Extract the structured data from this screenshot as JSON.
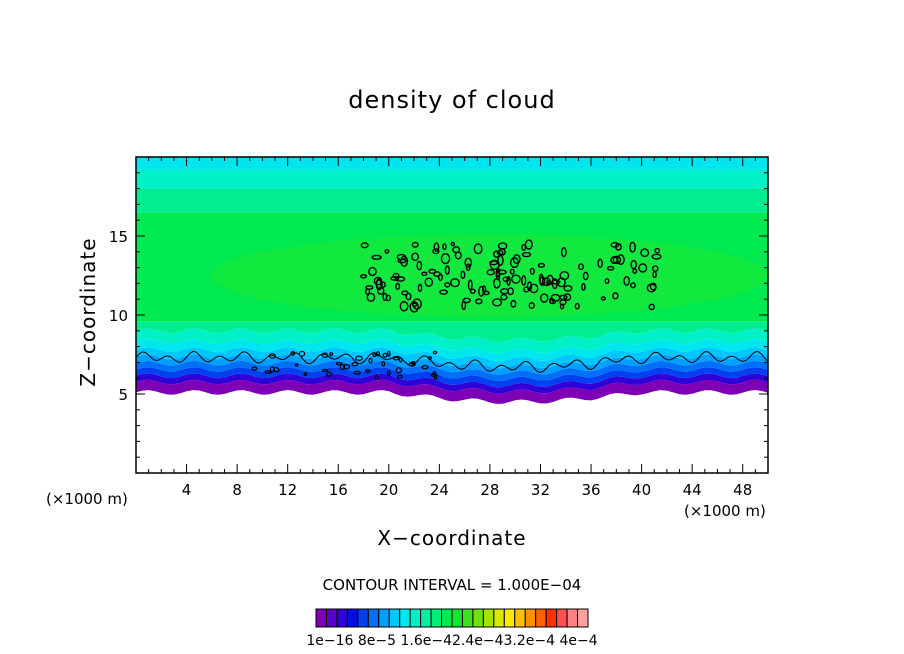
{
  "chart_data": {
    "type": "heatmap",
    "title": "density of cloud",
    "xlabel": "X−coordinate",
    "ylabel": "Z−coordinate",
    "x_unit_left": "(×1000 m)",
    "x_unit_right": "(×1000 m)",
    "xlim": [
      0,
      50
    ],
    "ylim": [
      0,
      20
    ],
    "x_ticks": [
      4,
      8,
      12,
      16,
      20,
      24,
      28,
      32,
      36,
      40,
      44,
      48
    ],
    "y_ticks": [
      5,
      10,
      15
    ],
    "contour_interval_label": "CONTOUR INTERVAL = 1.000E−04",
    "colorbar_labels": "1e−16 8e−5 1.6e−42.4e−43.2e−4 4e−4",
    "colorbar_colors": [
      "#7d00b5",
      "#5a00c8",
      "#3000d8",
      "#0010e0",
      "#0040f0",
      "#0070f8",
      "#00a0ff",
      "#00c8ff",
      "#00e6ee",
      "#00f0c8",
      "#00f0a0",
      "#00ee78",
      "#00ea50",
      "#10e830",
      "#40e020",
      "#70e010",
      "#a8e000",
      "#d8e800",
      "#ffe800",
      "#ffc000",
      "#ff9000",
      "#ff6000",
      "#ff3000",
      "#ff5050",
      "#ff8080",
      "#ffa0a0"
    ],
    "grid": false,
    "legend": "bottom (color bar)"
  }
}
